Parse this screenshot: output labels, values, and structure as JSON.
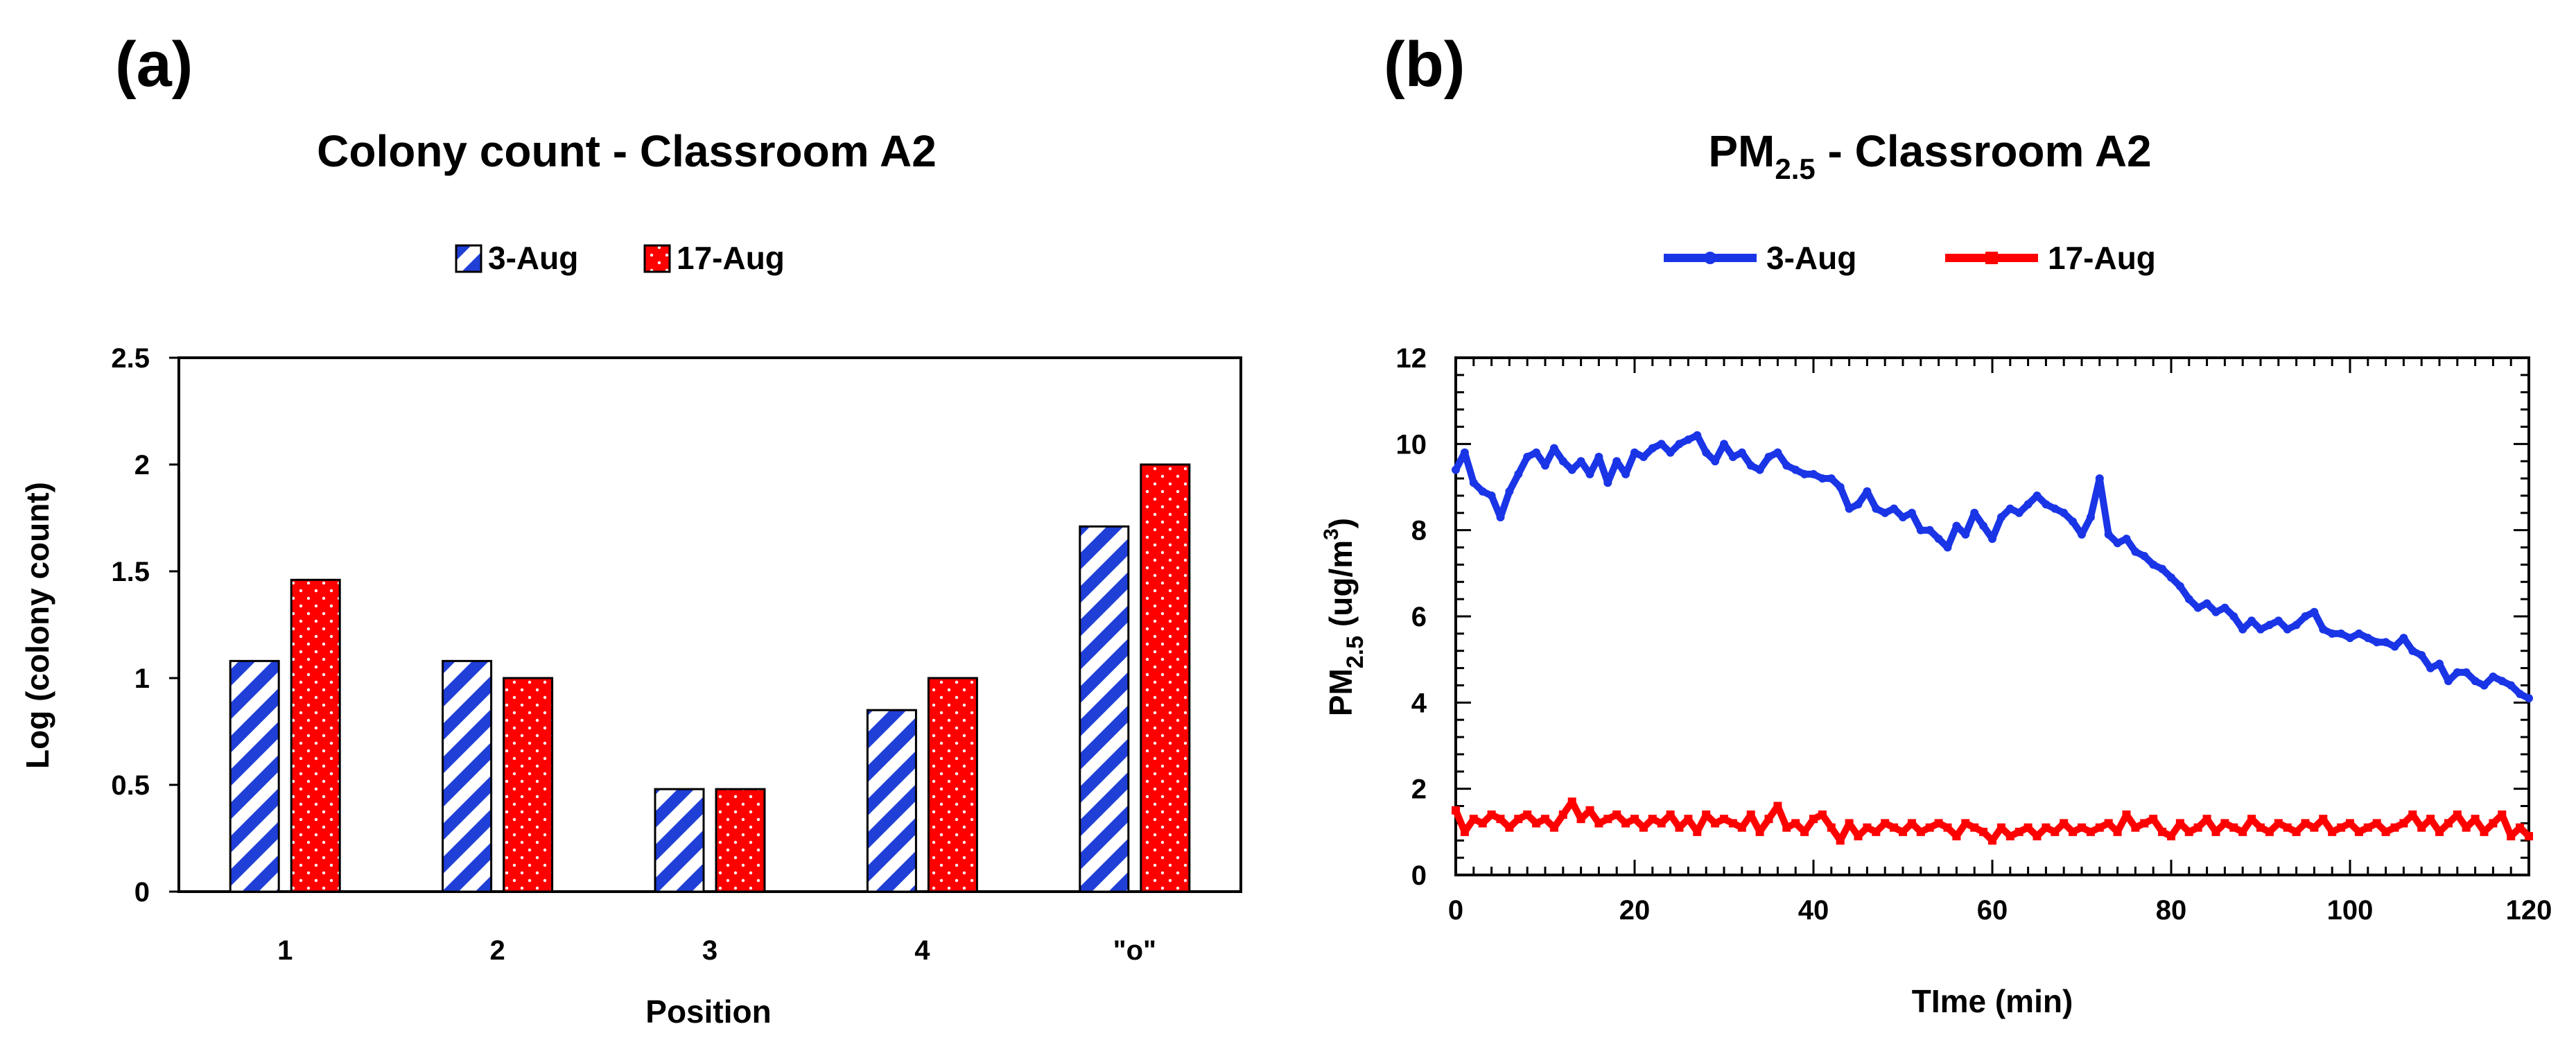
{
  "chart_data": [
    {
      "panel_label": "(a)",
      "type": "bar",
      "title": "Colony count - Classroom A2",
      "xlabel": "Position",
      "ylabel": "Log (colony count)",
      "categories": [
        "1",
        "2",
        "3",
        "4",
        "\"o\""
      ],
      "ylim": [
        0,
        2.5
      ],
      "yticks": [
        "0",
        "0.5",
        "1",
        "1.5",
        "2",
        "2.5"
      ],
      "legend_position": "top-center",
      "series": [
        {
          "name": "3-Aug",
          "values": [
            1.08,
            1.08,
            0.48,
            0.85,
            1.71
          ],
          "color": "#1f3fd6",
          "pattern": "diagonal-stripes"
        },
        {
          "name": "17-Aug",
          "values": [
            1.46,
            1.0,
            0.48,
            1.0,
            2.0
          ],
          "color": "#ff0000",
          "pattern": "white-dots"
        }
      ]
    },
    {
      "panel_label": "(b)",
      "type": "line",
      "title_main": "PM",
      "title_sub": "2.5",
      "title_rest": " - Classroom A2",
      "xlabel": "TIme (min)",
      "ylabel_main": "PM",
      "ylabel_sub": "2.5",
      "ylabel_rest": " (ug/m",
      "ylabel_sup": "3",
      "ylabel_end": ")",
      "xlim": [
        0,
        120
      ],
      "ylim": [
        0,
        12
      ],
      "xticks": [
        "0",
        "20",
        "40",
        "60",
        "80",
        "100",
        "120"
      ],
      "yticks": [
        "0",
        "2",
        "4",
        "6",
        "8",
        "10",
        "12"
      ],
      "legend_position": "top-center",
      "series": [
        {
          "name": "3-Aug",
          "color": "#1a35e6",
          "x": [
            0,
            1,
            2,
            3,
            4,
            5,
            6,
            7,
            8,
            9,
            10,
            11,
            12,
            13,
            14,
            15,
            16,
            17,
            18,
            19,
            20,
            21,
            22,
            23,
            24,
            25,
            26,
            27,
            28,
            29,
            30,
            31,
            32,
            33,
            34,
            35,
            36,
            37,
            38,
            39,
            40,
            41,
            42,
            43,
            44,
            45,
            46,
            47,
            48,
            49,
            50,
            51,
            52,
            53,
            54,
            55,
            56,
            57,
            58,
            59,
            60,
            61,
            62,
            63,
            64,
            65,
            66,
            67,
            68,
            69,
            70,
            71,
            72,
            73,
            74,
            75,
            76,
            77,
            78,
            79,
            80,
            81,
            82,
            83,
            84,
            85,
            86,
            87,
            88,
            89,
            90,
            91,
            92,
            93,
            94,
            95,
            96,
            97,
            98,
            99,
            100,
            101,
            102,
            103,
            104,
            105,
            106,
            107,
            108,
            109,
            110,
            111,
            112,
            113,
            114,
            115,
            116,
            117,
            118,
            119,
            120
          ],
          "values": [
            9.4,
            9.8,
            9.1,
            8.9,
            8.8,
            8.3,
            8.9,
            9.3,
            9.7,
            9.8,
            9.5,
            9.9,
            9.6,
            9.4,
            9.6,
            9.3,
            9.7,
            9.1,
            9.6,
            9.3,
            9.8,
            9.7,
            9.9,
            10.0,
            9.8,
            10.0,
            10.1,
            10.2,
            9.8,
            9.6,
            10.0,
            9.7,
            9.8,
            9.5,
            9.4,
            9.7,
            9.8,
            9.5,
            9.4,
            9.3,
            9.3,
            9.2,
            9.2,
            9.0,
            8.5,
            8.6,
            8.9,
            8.5,
            8.4,
            8.5,
            8.3,
            8.4,
            8.0,
            8.0,
            7.8,
            7.6,
            8.1,
            7.9,
            8.4,
            8.1,
            7.8,
            8.3,
            8.5,
            8.4,
            8.6,
            8.8,
            8.6,
            8.5,
            8.4,
            8.2,
            7.9,
            8.3,
            9.2,
            7.9,
            7.7,
            7.8,
            7.5,
            7.4,
            7.2,
            7.1,
            6.9,
            6.7,
            6.4,
            6.2,
            6.3,
            6.1,
            6.2,
            6.0,
            5.7,
            5.9,
            5.7,
            5.8,
            5.9,
            5.7,
            5.8,
            6.0,
            6.1,
            5.7,
            5.6,
            5.6,
            5.5,
            5.6,
            5.5,
            5.4,
            5.4,
            5.3,
            5.5,
            5.2,
            5.1,
            4.8,
            4.9,
            4.5,
            4.7,
            4.7,
            4.5,
            4.4,
            4.6,
            4.5,
            4.4,
            4.2,
            4.1
          ]
        },
        {
          "name": "17-Aug",
          "color": "#ff0000",
          "x": [
            0,
            1,
            2,
            3,
            4,
            5,
            6,
            7,
            8,
            9,
            10,
            11,
            12,
            13,
            14,
            15,
            16,
            17,
            18,
            19,
            20,
            21,
            22,
            23,
            24,
            25,
            26,
            27,
            28,
            29,
            30,
            31,
            32,
            33,
            34,
            35,
            36,
            37,
            38,
            39,
            40,
            41,
            42,
            43,
            44,
            45,
            46,
            47,
            48,
            49,
            50,
            51,
            52,
            53,
            54,
            55,
            56,
            57,
            58,
            59,
            60,
            61,
            62,
            63,
            64,
            65,
            66,
            67,
            68,
            69,
            70,
            71,
            72,
            73,
            74,
            75,
            76,
            77,
            78,
            79,
            80,
            81,
            82,
            83,
            84,
            85,
            86,
            87,
            88,
            89,
            90,
            91,
            92,
            93,
            94,
            95,
            96,
            97,
            98,
            99,
            100,
            101,
            102,
            103,
            104,
            105,
            106,
            107,
            108,
            109,
            110,
            111,
            112,
            113,
            114,
            115,
            116,
            117,
            118,
            119,
            120
          ],
          "values": [
            1.5,
            1.0,
            1.3,
            1.2,
            1.4,
            1.3,
            1.1,
            1.3,
            1.4,
            1.2,
            1.3,
            1.1,
            1.4,
            1.7,
            1.3,
            1.5,
            1.2,
            1.3,
            1.4,
            1.2,
            1.3,
            1.1,
            1.3,
            1.2,
            1.4,
            1.1,
            1.3,
            1.0,
            1.4,
            1.2,
            1.3,
            1.2,
            1.1,
            1.4,
            1.0,
            1.3,
            1.6,
            1.1,
            1.2,
            1.0,
            1.3,
            1.4,
            1.1,
            0.8,
            1.2,
            0.9,
            1.1,
            1.0,
            1.2,
            1.1,
            1.0,
            1.2,
            1.0,
            1.1,
            1.2,
            1.1,
            0.9,
            1.2,
            1.1,
            1.0,
            0.8,
            1.1,
            0.9,
            1.0,
            1.1,
            0.9,
            1.1,
            1.0,
            1.2,
            1.0,
            1.1,
            1.0,
            1.1,
            1.2,
            1.0,
            1.4,
            1.1,
            1.2,
            1.3,
            1.0,
            0.9,
            1.2,
            1.0,
            1.1,
            1.3,
            1.0,
            1.2,
            1.1,
            1.0,
            1.3,
            1.1,
            1.0,
            1.2,
            1.1,
            1.0,
            1.2,
            1.1,
            1.3,
            1.0,
            1.1,
            1.2,
            1.0,
            1.1,
            1.2,
            1.0,
            1.1,
            1.2,
            1.4,
            1.1,
            1.3,
            1.0,
            1.2,
            1.4,
            1.1,
            1.3,
            1.0,
            1.2,
            1.4,
            0.9,
            1.1,
            0.9
          ]
        }
      ]
    }
  ]
}
